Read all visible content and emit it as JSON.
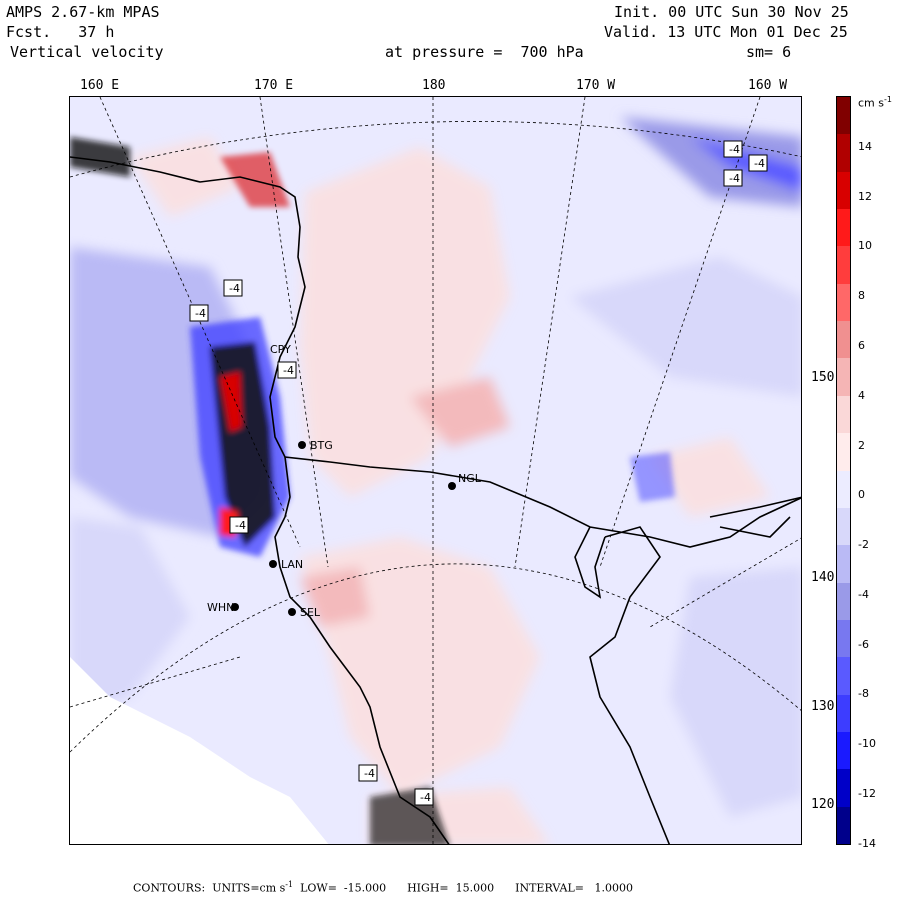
{
  "header": {
    "model": "AMPS 2.67-km MPAS",
    "forecast": "Fcst.   37 h",
    "field": "Vertical velocity",
    "init": "Init. 00 UTC Sun 30 Nov 25",
    "valid": "Valid. 13 UTC Mon 01 Dec 25",
    "pressure": "at pressure =  700 hPa",
    "smoothing": "sm= 6"
  },
  "longitude_labels": [
    "160 E",
    "170 E",
    "180",
    "170 W",
    "160 W"
  ],
  "latitude_labels": [
    "150 W",
    "140 W",
    "130 W",
    "120 W"
  ],
  "colorbar": {
    "units": "cm s",
    "units_exp": "-1",
    "tick_labels": [
      "14",
      "12",
      "10",
      "8",
      "6",
      "4",
      "2",
      "0",
      "-2",
      "-4",
      "-6",
      "-8",
      "-10",
      "-12",
      "-14"
    ],
    "colors": [
      "#00008b",
      "#0000c8",
      "#1a1aff",
      "#3d3dff",
      "#5a5aff",
      "#7878f0",
      "#9a9ae8",
      "#babaf5",
      "#d8d8fa",
      "#ececff",
      "#ffecec",
      "#fad8d8",
      "#f5b5b5",
      "#f09090",
      "#ff6868",
      "#ff3d3d",
      "#ff1a1a",
      "#d80000",
      "#b00000",
      "#800000"
    ]
  },
  "stations": [
    {
      "id": "CPY",
      "label": "CPY"
    },
    {
      "id": "BTG",
      "label": "BTG"
    },
    {
      "id": "NGL",
      "label": "NGL"
    },
    {
      "id": "LAN",
      "label": "LAN"
    },
    {
      "id": "WHN",
      "label": "WHN"
    },
    {
      "id": "SEL",
      "label": "SEL"
    }
  ],
  "min_labels": [
    "-4",
    "-4",
    "-4",
    "-4",
    "-4",
    "-4",
    "-4",
    "-4",
    "-4"
  ],
  "footer": {
    "contours": "CONTOURS:  UNITS=cm s",
    "units_exp": "-1",
    "low": "LOW=  -15.000",
    "high": "HIGH=  15.000",
    "interval": "INTERVAL=   1.0000"
  }
}
